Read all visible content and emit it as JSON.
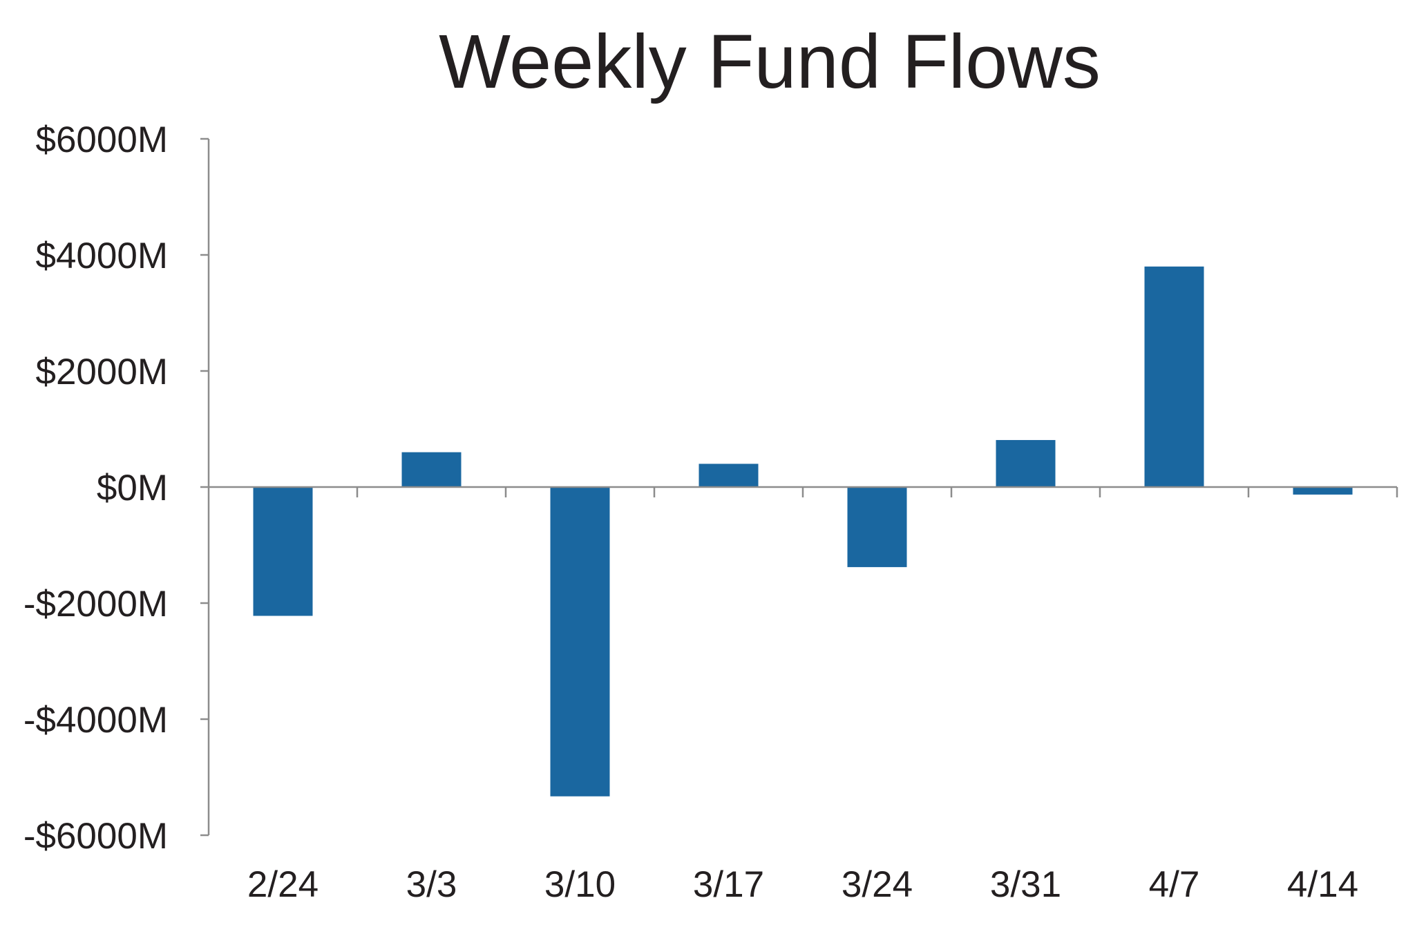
{
  "chart_data": {
    "type": "bar",
    "title": "Weekly Fund Flows",
    "xlabel": "",
    "ylabel": "",
    "categories": [
      "2/24",
      "3/3",
      "3/10",
      "3/17",
      "3/24",
      "3/31",
      "4/7",
      "4/14"
    ],
    "series": [
      {
        "values": [
          -2220,
          600,
          -5330,
          400,
          -1380,
          810,
          3800,
          -130
        ],
        "color": "#1a67a0"
      }
    ],
    "ylim": [
      -6000,
      6000
    ],
    "yticks": [
      6000,
      4000,
      2000,
      0,
      -2000,
      -4000,
      -6000
    ],
    "ytick_labels": [
      "$6000M",
      "$4000M",
      "$2000M",
      "$0M",
      "-$2000M",
      "-$4000M",
      "-$6000M"
    ],
    "grid": false,
    "legend": "none",
    "axis_color": "#8c8c8c",
    "text_color": "#231f20"
  }
}
